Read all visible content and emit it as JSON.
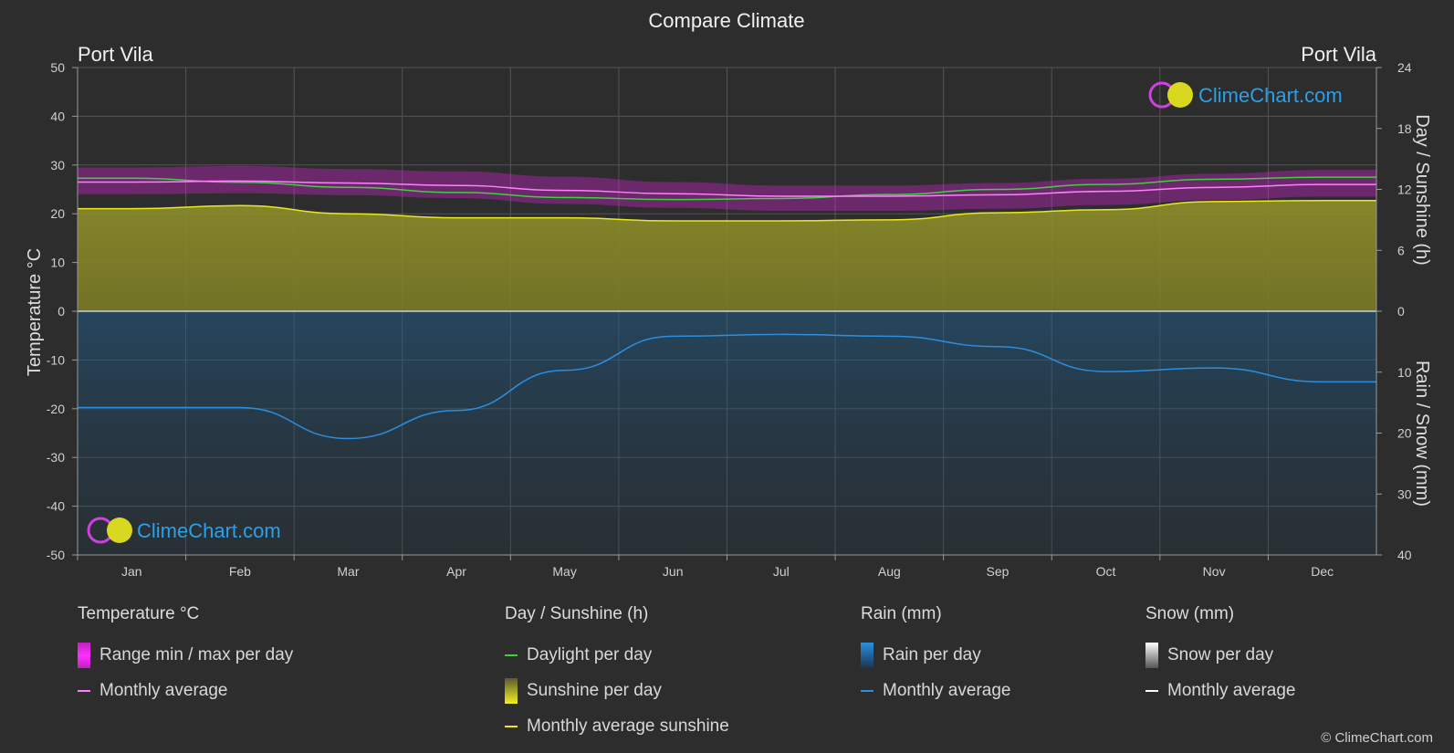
{
  "title": "Compare Climate",
  "location_left": "Port Vila",
  "location_right": "Port Vila",
  "logo_text": "ClimeChart.com",
  "copyright": "© ClimeChart.com",
  "colors": {
    "background": "#2d2d2d",
    "temp_range": "#e020e0",
    "temp_avg": "#ff80ff",
    "daylight": "#40d040",
    "sunshine_fill": "#8f8f2a",
    "sunshine_avg": "#e8e820",
    "rain_fill": "#1e5f8f",
    "rain_avg": "#2a8fe0",
    "snow_avg": "#ffffff",
    "logo_blue": "#2aa0e8"
  },
  "legend": {
    "temperature": {
      "title": "Temperature °C",
      "range": "Range min / max per day",
      "avg": "Monthly average"
    },
    "sunshine": {
      "title": "Day / Sunshine (h)",
      "daylight": "Daylight per day",
      "sunshine": "Sunshine per day",
      "avg": "Monthly average sunshine"
    },
    "rain": {
      "title": "Rain (mm)",
      "rain": "Rain per day",
      "avg": "Monthly average"
    },
    "snow": {
      "title": "Snow (mm)",
      "snow": "Snow per day",
      "avg": "Monthly average"
    }
  },
  "chart_data": {
    "type": "line",
    "categories": [
      "Jan",
      "Feb",
      "Mar",
      "Apr",
      "May",
      "Jun",
      "Jul",
      "Aug",
      "Sep",
      "Oct",
      "Nov",
      "Dec"
    ],
    "axes": {
      "left": {
        "label": "Temperature °C",
        "range": [
          -50,
          50
        ],
        "ticks": [
          "50",
          "40",
          "30",
          "20",
          "10",
          "0",
          "-10",
          "-20",
          "-30",
          "-40",
          "-50"
        ]
      },
      "right_top": {
        "label": "Day / Sunshine (h)",
        "range": [
          0,
          24
        ],
        "ticks": [
          "24",
          "18",
          "12",
          "6",
          "0"
        ]
      },
      "right_bottom": {
        "label": "Rain / Snow (mm)",
        "range": [
          0,
          40
        ],
        "ticks": [
          "0",
          "10",
          "20",
          "30",
          "40"
        ]
      }
    },
    "grid": true,
    "series": [
      {
        "name": "Temperature Monthly average",
        "axis": "left",
        "values": [
          26.5,
          26.7,
          26.3,
          25.8,
          24.8,
          24.1,
          23.6,
          23.6,
          23.9,
          24.6,
          25.4,
          26.0
        ]
      },
      {
        "name": "Temperature max",
        "axis": "left",
        "values": [
          29.5,
          29.8,
          29.2,
          28.7,
          27.6,
          26.5,
          25.8,
          25.8,
          26.3,
          27.2,
          28.2,
          29.0
        ]
      },
      {
        "name": "Temperature min",
        "axis": "left",
        "values": [
          24.0,
          24.2,
          23.8,
          23.2,
          22.0,
          21.2,
          20.6,
          20.6,
          21.0,
          21.8,
          22.8,
          23.5
        ]
      },
      {
        "name": "Daylight per day",
        "axis": "right_top",
        "values": [
          13.1,
          12.7,
          12.2,
          11.7,
          11.2,
          11.0,
          11.1,
          11.5,
          12.0,
          12.5,
          13.0,
          13.2
        ]
      },
      {
        "name": "Monthly average sunshine",
        "axis": "right_top",
        "values": [
          10.1,
          10.4,
          9.6,
          9.2,
          9.2,
          8.9,
          8.9,
          9.0,
          9.7,
          10.0,
          10.8,
          10.9
        ]
      },
      {
        "name": "Rain Monthly average",
        "axis": "right_bottom",
        "values": [
          15.8,
          15.8,
          20.9,
          16.3,
          9.7,
          4.1,
          3.8,
          4.1,
          5.8,
          9.9,
          9.3,
          11.6
        ]
      },
      {
        "name": "Snow Monthly average",
        "axis": "right_bottom",
        "values": [
          0,
          0,
          0,
          0,
          0,
          0,
          0,
          0,
          0,
          0,
          0,
          0
        ]
      }
    ]
  }
}
